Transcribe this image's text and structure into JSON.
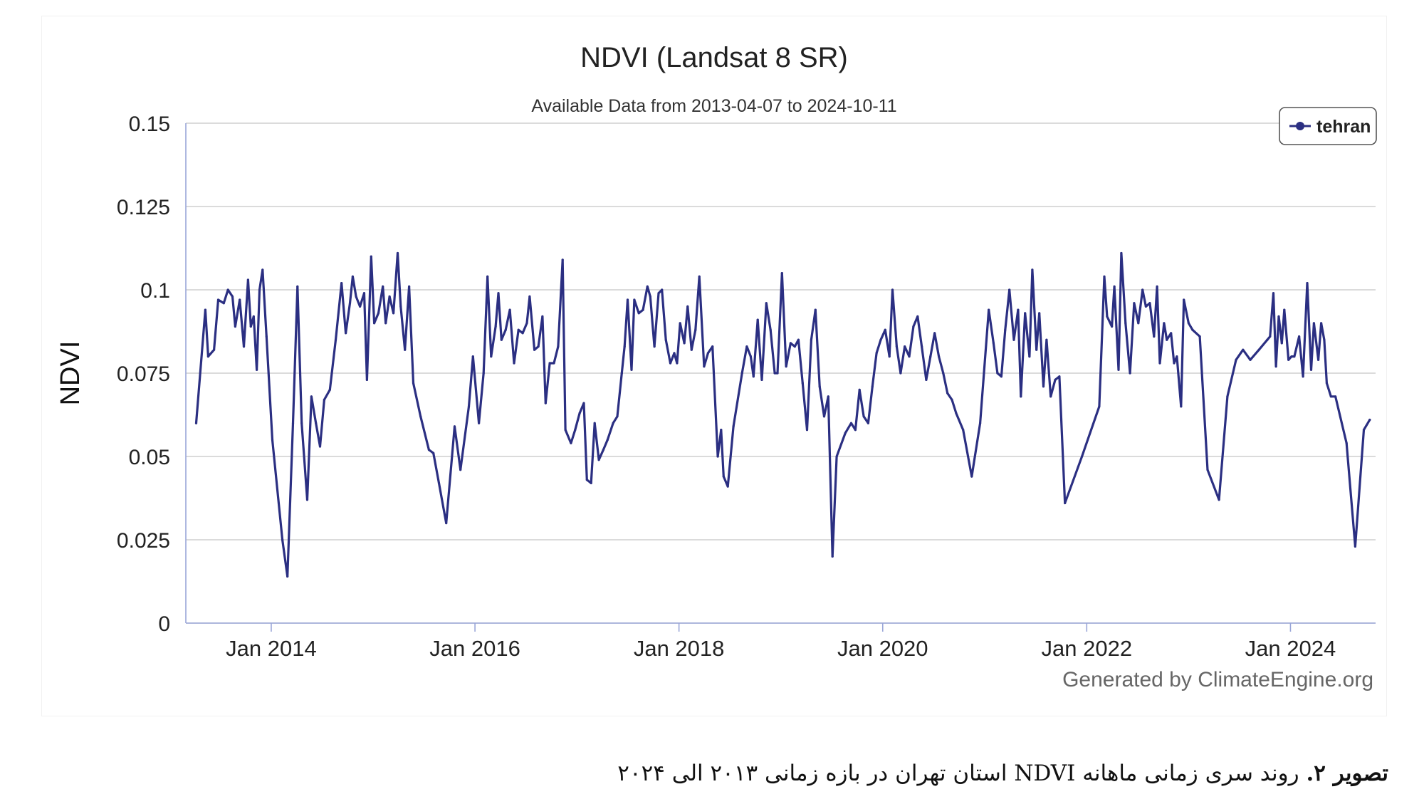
{
  "chart_data": {
    "type": "line",
    "title": "NDVI (Landsat 8 SR)",
    "subtitle": "Available Data from 2013-04-07 to 2024-10-11",
    "ylabel": "NDVI",
    "xlabel": "",
    "ylim": [
      0,
      0.15
    ],
    "yticks": [
      "0",
      "0.025",
      "0.05",
      "0.075",
      "0.1",
      "0.125",
      "0.15"
    ],
    "xticks": [
      "Jan 2014",
      "Jan 2016",
      "Jan 2018",
      "Jan 2020",
      "Jan 2022",
      "Jan 2024"
    ],
    "xlim": [
      "2013-03-01",
      "2024-11-01"
    ],
    "grid": true,
    "legend_position": "top-right",
    "series": [
      {
        "name": "tehran",
        "color": "#2b2f82",
        "points": [
          [
            "2013-04-07",
            0.06
          ],
          [
            "2013-05-10",
            0.094
          ],
          [
            "2013-05-20",
            0.08
          ],
          [
            "2013-06-10",
            0.082
          ],
          [
            "2013-06-25",
            0.097
          ],
          [
            "2013-07-15",
            0.096
          ],
          [
            "2013-07-30",
            0.1
          ],
          [
            "2013-08-15",
            0.098
          ],
          [
            "2013-08-25",
            0.089
          ],
          [
            "2013-09-10",
            0.097
          ],
          [
            "2013-09-25",
            0.083
          ],
          [
            "2013-10-10",
            0.103
          ],
          [
            "2013-10-20",
            0.089
          ],
          [
            "2013-10-30",
            0.092
          ],
          [
            "2013-11-10",
            0.076
          ],
          [
            "2013-11-20",
            0.1
          ],
          [
            "2013-12-01",
            0.106
          ],
          [
            "2013-12-15",
            0.086
          ],
          [
            "2014-01-05",
            0.055
          ],
          [
            "2014-02-10",
            0.025
          ],
          [
            "2014-02-28",
            0.014
          ],
          [
            "2014-03-20",
            0.06
          ],
          [
            "2014-04-05",
            0.101
          ],
          [
            "2014-04-20",
            0.06
          ],
          [
            "2014-05-10",
            0.037
          ],
          [
            "2014-05-25",
            0.068
          ],
          [
            "2014-06-10",
            0.06
          ],
          [
            "2014-06-25",
            0.053
          ],
          [
            "2014-07-10",
            0.067
          ],
          [
            "2014-07-30",
            0.07
          ],
          [
            "2014-08-20",
            0.085
          ],
          [
            "2014-09-10",
            0.102
          ],
          [
            "2014-09-25",
            0.087
          ],
          [
            "2014-10-10",
            0.096
          ],
          [
            "2014-10-20",
            0.104
          ],
          [
            "2014-11-01",
            0.098
          ],
          [
            "2014-11-15",
            0.095
          ],
          [
            "2014-11-30",
            0.099
          ],
          [
            "2014-12-10",
            0.073
          ],
          [
            "2014-12-25",
            0.11
          ],
          [
            "2015-01-05",
            0.09
          ],
          [
            "2015-01-20",
            0.093
          ],
          [
            "2015-02-05",
            0.101
          ],
          [
            "2015-02-15",
            0.09
          ],
          [
            "2015-03-01",
            0.098
          ],
          [
            "2015-03-15",
            0.093
          ],
          [
            "2015-03-30",
            0.111
          ],
          [
            "2015-04-10",
            0.095
          ],
          [
            "2015-04-25",
            0.082
          ],
          [
            "2015-05-10",
            0.101
          ],
          [
            "2015-05-25",
            0.072
          ],
          [
            "2015-06-20",
            0.062
          ],
          [
            "2015-07-20",
            0.052
          ],
          [
            "2015-08-05",
            0.051
          ],
          [
            "2015-08-25",
            0.042
          ],
          [
            "2015-09-20",
            0.03
          ],
          [
            "2015-10-20",
            0.059
          ],
          [
            "2015-11-10",
            0.046
          ],
          [
            "2015-12-10",
            0.065
          ],
          [
            "2015-12-25",
            0.08
          ],
          [
            "2016-01-15",
            0.06
          ],
          [
            "2016-02-01",
            0.075
          ],
          [
            "2016-02-15",
            0.104
          ],
          [
            "2016-02-28",
            0.08
          ],
          [
            "2016-03-15",
            0.089
          ],
          [
            "2016-03-25",
            0.099
          ],
          [
            "2016-04-05",
            0.085
          ],
          [
            "2016-04-20",
            0.088
          ],
          [
            "2016-05-05",
            0.094
          ],
          [
            "2016-05-20",
            0.078
          ],
          [
            "2016-06-05",
            0.088
          ],
          [
            "2016-06-20",
            0.087
          ],
          [
            "2016-07-05",
            0.09
          ],
          [
            "2016-07-15",
            0.098
          ],
          [
            "2016-08-01",
            0.082
          ],
          [
            "2016-08-15",
            0.083
          ],
          [
            "2016-08-30",
            0.092
          ],
          [
            "2016-09-10",
            0.066
          ],
          [
            "2016-09-25",
            0.078
          ],
          [
            "2016-10-10",
            0.078
          ],
          [
            "2016-10-25",
            0.083
          ],
          [
            "2016-11-10",
            0.109
          ],
          [
            "2016-11-20",
            0.058
          ],
          [
            "2016-12-10",
            0.054
          ],
          [
            "2016-12-25",
            0.058
          ],
          [
            "2017-01-10",
            0.063
          ],
          [
            "2017-01-25",
            0.066
          ],
          [
            "2017-02-05",
            0.043
          ],
          [
            "2017-02-20",
            0.042
          ],
          [
            "2017-03-05",
            0.06
          ],
          [
            "2017-03-20",
            0.049
          ],
          [
            "2017-04-05",
            0.052
          ],
          [
            "2017-04-20",
            0.055
          ],
          [
            "2017-05-10",
            0.06
          ],
          [
            "2017-05-25",
            0.062
          ],
          [
            "2017-06-10",
            0.075
          ],
          [
            "2017-06-20",
            0.083
          ],
          [
            "2017-07-01",
            0.097
          ],
          [
            "2017-07-15",
            0.076
          ],
          [
            "2017-07-25",
            0.097
          ],
          [
            "2017-08-10",
            0.093
          ],
          [
            "2017-08-25",
            0.094
          ],
          [
            "2017-09-10",
            0.101
          ],
          [
            "2017-09-20",
            0.098
          ],
          [
            "2017-10-05",
            0.083
          ],
          [
            "2017-10-20",
            0.099
          ],
          [
            "2017-11-01",
            0.1
          ],
          [
            "2017-11-15",
            0.085
          ],
          [
            "2017-12-01",
            0.078
          ],
          [
            "2017-12-15",
            0.081
          ],
          [
            "2017-12-25",
            0.078
          ],
          [
            "2018-01-05",
            0.09
          ],
          [
            "2018-01-20",
            0.084
          ],
          [
            "2018-02-01",
            0.095
          ],
          [
            "2018-02-15",
            0.082
          ],
          [
            "2018-03-01",
            0.088
          ],
          [
            "2018-03-15",
            0.104
          ],
          [
            "2018-04-01",
            0.077
          ],
          [
            "2018-04-15",
            0.081
          ],
          [
            "2018-05-01",
            0.083
          ],
          [
            "2018-05-20",
            0.05
          ],
          [
            "2018-06-01",
            0.058
          ],
          [
            "2018-06-10",
            0.044
          ],
          [
            "2018-06-25",
            0.041
          ],
          [
            "2018-07-15",
            0.059
          ],
          [
            "2018-08-15",
            0.075
          ],
          [
            "2018-09-01",
            0.083
          ],
          [
            "2018-09-15",
            0.08
          ],
          [
            "2018-09-25",
            0.074
          ],
          [
            "2018-10-10",
            0.091
          ],
          [
            "2018-10-25",
            0.073
          ],
          [
            "2018-11-10",
            0.096
          ],
          [
            "2018-11-25",
            0.088
          ],
          [
            "2018-12-10",
            0.075
          ],
          [
            "2018-12-20",
            0.075
          ],
          [
            "2019-01-05",
            0.105
          ],
          [
            "2019-01-20",
            0.077
          ],
          [
            "2019-02-05",
            0.084
          ],
          [
            "2019-02-20",
            0.083
          ],
          [
            "2019-03-05",
            0.085
          ],
          [
            "2019-03-20",
            0.072
          ],
          [
            "2019-04-05",
            0.058
          ],
          [
            "2019-04-20",
            0.085
          ],
          [
            "2019-05-05",
            0.094
          ],
          [
            "2019-05-20",
            0.071
          ],
          [
            "2019-06-05",
            0.062
          ],
          [
            "2019-06-20",
            0.068
          ],
          [
            "2019-07-05",
            0.02
          ],
          [
            "2019-07-20",
            0.05
          ],
          [
            "2019-08-20",
            0.057
          ],
          [
            "2019-09-10",
            0.06
          ],
          [
            "2019-09-25",
            0.058
          ],
          [
            "2019-10-10",
            0.07
          ],
          [
            "2019-10-25",
            0.062
          ],
          [
            "2019-11-10",
            0.06
          ],
          [
            "2019-11-25",
            0.071
          ],
          [
            "2019-12-10",
            0.081
          ],
          [
            "2019-12-25",
            0.085
          ],
          [
            "2020-01-10",
            0.088
          ],
          [
            "2020-01-25",
            0.08
          ],
          [
            "2020-02-05",
            0.1
          ],
          [
            "2020-02-20",
            0.083
          ],
          [
            "2020-03-05",
            0.075
          ],
          [
            "2020-03-20",
            0.083
          ],
          [
            "2020-04-05",
            0.08
          ],
          [
            "2020-04-20",
            0.089
          ],
          [
            "2020-05-05",
            0.092
          ],
          [
            "2020-05-20",
            0.083
          ],
          [
            "2020-06-05",
            0.073
          ],
          [
            "2020-06-20",
            0.08
          ],
          [
            "2020-07-05",
            0.087
          ],
          [
            "2020-07-20",
            0.08
          ],
          [
            "2020-08-05",
            0.075
          ],
          [
            "2020-08-20",
            0.069
          ],
          [
            "2020-09-05",
            0.067
          ],
          [
            "2020-09-20",
            0.063
          ],
          [
            "2020-10-15",
            0.058
          ],
          [
            "2020-11-15",
            0.044
          ],
          [
            "2020-12-15",
            0.06
          ],
          [
            "2021-01-15",
            0.094
          ],
          [
            "2021-02-01",
            0.084
          ],
          [
            "2021-02-15",
            0.075
          ],
          [
            "2021-03-01",
            0.074
          ],
          [
            "2021-03-15",
            0.088
          ],
          [
            "2021-03-30",
            0.1
          ],
          [
            "2021-04-15",
            0.085
          ],
          [
            "2021-04-30",
            0.094
          ],
          [
            "2021-05-10",
            0.068
          ],
          [
            "2021-05-25",
            0.093
          ],
          [
            "2021-06-10",
            0.08
          ],
          [
            "2021-06-20",
            0.106
          ],
          [
            "2021-07-05",
            0.082
          ],
          [
            "2021-07-15",
            0.093
          ],
          [
            "2021-07-30",
            0.071
          ],
          [
            "2021-08-10",
            0.085
          ],
          [
            "2021-08-25",
            0.068
          ],
          [
            "2021-09-10",
            0.073
          ],
          [
            "2021-09-25",
            0.074
          ],
          [
            "2021-10-15",
            0.036
          ],
          [
            "2021-12-15",
            0.05
          ],
          [
            "2022-02-15",
            0.065
          ],
          [
            "2022-03-05",
            0.104
          ],
          [
            "2022-03-15",
            0.092
          ],
          [
            "2022-04-01",
            0.089
          ],
          [
            "2022-04-10",
            0.101
          ],
          [
            "2022-04-25",
            0.076
          ],
          [
            "2022-05-05",
            0.111
          ],
          [
            "2022-05-20",
            0.09
          ],
          [
            "2022-06-05",
            0.075
          ],
          [
            "2022-06-20",
            0.096
          ],
          [
            "2022-07-05",
            0.09
          ],
          [
            "2022-07-20",
            0.1
          ],
          [
            "2022-08-01",
            0.095
          ],
          [
            "2022-08-15",
            0.096
          ],
          [
            "2022-08-30",
            0.086
          ],
          [
            "2022-09-10",
            0.101
          ],
          [
            "2022-09-20",
            0.078
          ],
          [
            "2022-10-05",
            0.09
          ],
          [
            "2022-10-15",
            0.085
          ],
          [
            "2022-10-30",
            0.087
          ],
          [
            "2022-11-10",
            0.078
          ],
          [
            "2022-11-20",
            0.08
          ],
          [
            "2022-12-05",
            0.065
          ],
          [
            "2022-12-15",
            0.097
          ],
          [
            "2023-01-01",
            0.09
          ],
          [
            "2023-01-15",
            0.088
          ],
          [
            "2023-02-10",
            0.086
          ],
          [
            "2023-03-10",
            0.046
          ],
          [
            "2023-04-20",
            0.037
          ],
          [
            "2023-05-20",
            0.068
          ],
          [
            "2023-06-20",
            0.079
          ],
          [
            "2023-07-15",
            0.082
          ],
          [
            "2023-08-10",
            0.079
          ],
          [
            "2023-09-10",
            0.082
          ],
          [
            "2023-10-10",
            0.085
          ],
          [
            "2023-10-20",
            0.086
          ],
          [
            "2023-11-01",
            0.099
          ],
          [
            "2023-11-10",
            0.077
          ],
          [
            "2023-11-20",
            0.092
          ],
          [
            "2023-12-01",
            0.084
          ],
          [
            "2023-12-10",
            0.094
          ],
          [
            "2023-12-25",
            0.079
          ],
          [
            "2024-01-05",
            0.08
          ],
          [
            "2024-01-15",
            0.08
          ],
          [
            "2024-02-01",
            0.086
          ],
          [
            "2024-02-15",
            0.074
          ],
          [
            "2024-03-01",
            0.102
          ],
          [
            "2024-03-15",
            0.076
          ],
          [
            "2024-03-25",
            0.09
          ],
          [
            "2024-04-10",
            0.079
          ],
          [
            "2024-04-20",
            0.09
          ],
          [
            "2024-05-01",
            0.085
          ],
          [
            "2024-05-10",
            0.072
          ],
          [
            "2024-05-25",
            0.068
          ],
          [
            "2024-06-10",
            0.068
          ],
          [
            "2024-07-20",
            0.054
          ],
          [
            "2024-08-20",
            0.023
          ],
          [
            "2024-09-20",
            0.058
          ],
          [
            "2024-10-11",
            0.061
          ]
        ]
      }
    ],
    "watermark": "Generated by ClimateEngine.org"
  },
  "caption": {
    "prefix": "تصویر ۲.",
    "text": " روند سری زمانی ماهانه NDVI استان تهران در بازه زمانی ۲۰۱۳ الی ۲۰۲۴"
  },
  "colors": {
    "line": "#2b2f82",
    "grid": "#cfcfcf",
    "axis": "#9aa6d8"
  }
}
